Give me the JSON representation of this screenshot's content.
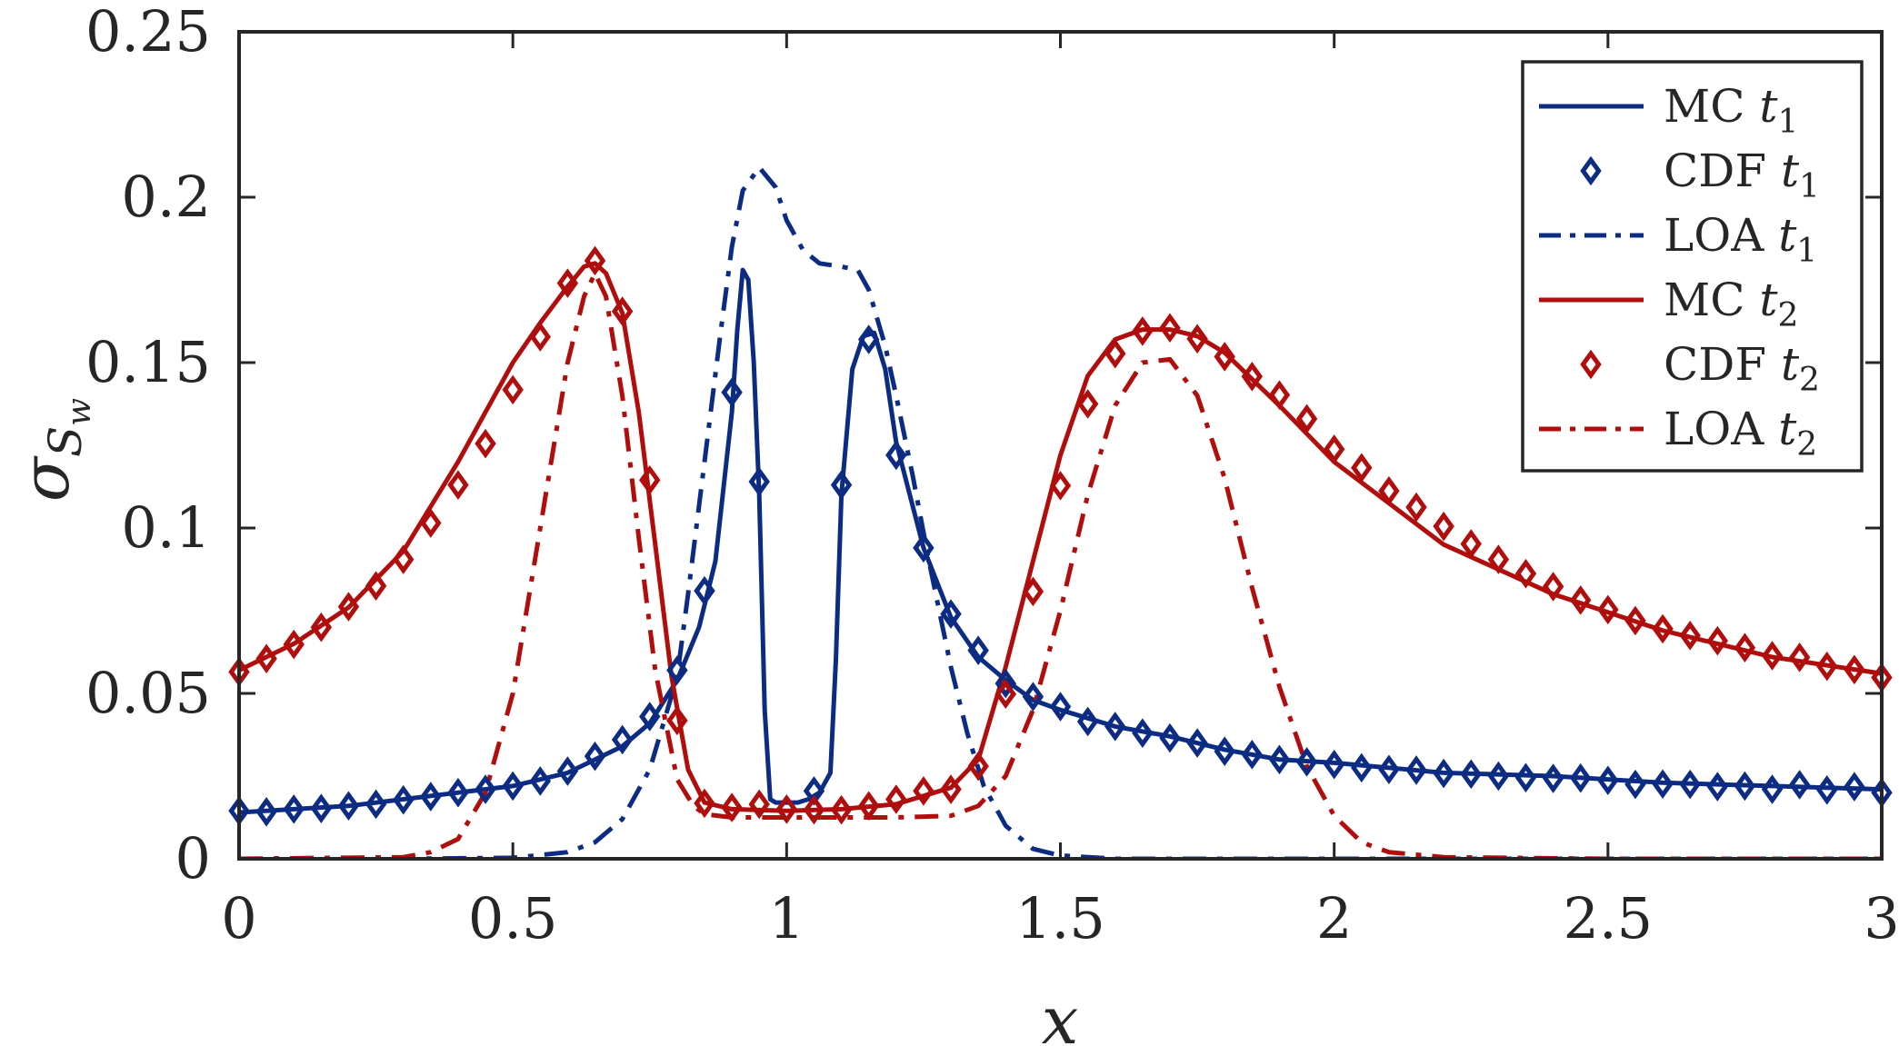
{
  "chart_data": {
    "type": "line",
    "title": "",
    "xlabel": "x",
    "ylabel": "σ_{S_w}",
    "ylabel_main": "σ",
    "ylabel_sub": "S",
    "ylabel_subsub": "w",
    "xlim": [
      0,
      3
    ],
    "ylim": [
      0,
      0.25
    ],
    "xticks": [
      0,
      0.5,
      1,
      1.5,
      2,
      2.5,
      3
    ],
    "xtick_labels": [
      "0",
      "0.5",
      "1",
      "1.5",
      "2",
      "2.5",
      "3"
    ],
    "yticks": [
      0,
      0.05,
      0.1,
      0.15,
      0.2,
      0.25
    ],
    "ytick_labels": [
      "0",
      "0.05",
      "0.1",
      "0.15",
      "0.2",
      "0.25"
    ],
    "grid": false,
    "legend_position": "top-right",
    "colors": {
      "t1": "#0c2c84",
      "t2": "#b00d0d"
    },
    "series": [
      {
        "name": "MC t1",
        "label_main": "MC",
        "label_t": "t",
        "label_sub": "1",
        "color": "#0c2c84",
        "style": "solid",
        "marker": "none",
        "x": [
          0,
          0.1,
          0.2,
          0.3,
          0.4,
          0.5,
          0.6,
          0.7,
          0.75,
          0.8,
          0.84,
          0.87,
          0.9,
          0.91,
          0.92,
          0.93,
          0.94,
          0.95,
          0.96,
          0.97,
          0.98,
          1.0,
          1.02,
          1.04,
          1.06,
          1.08,
          1.09,
          1.1,
          1.12,
          1.14,
          1.16,
          1.18,
          1.2,
          1.25,
          1.3,
          1.35,
          1.4,
          1.45,
          1.5,
          1.6,
          1.7,
          1.8,
          1.9,
          2.0,
          2.2,
          2.4,
          2.6,
          2.8,
          3.0
        ],
        "y": [
          0.014,
          0.015,
          0.016,
          0.018,
          0.02,
          0.022,
          0.026,
          0.034,
          0.041,
          0.054,
          0.07,
          0.09,
          0.135,
          0.16,
          0.178,
          0.175,
          0.15,
          0.11,
          0.045,
          0.018,
          0.017,
          0.017,
          0.017,
          0.018,
          0.02,
          0.026,
          0.06,
          0.11,
          0.148,
          0.158,
          0.159,
          0.148,
          0.126,
          0.094,
          0.073,
          0.061,
          0.054,
          0.048,
          0.045,
          0.04,
          0.037,
          0.033,
          0.03,
          0.029,
          0.026,
          0.025,
          0.023,
          0.022,
          0.021
        ]
      },
      {
        "name": "CDF t1",
        "label_main": "CDF",
        "label_t": "t",
        "label_sub": "1",
        "color": "#0c2c84",
        "style": "none",
        "marker": "diamond",
        "x": [
          0,
          0.05,
          0.1,
          0.15,
          0.2,
          0.25,
          0.3,
          0.35,
          0.4,
          0.45,
          0.5,
          0.55,
          0.6,
          0.65,
          0.7,
          0.75,
          0.8,
          0.85,
          0.9,
          0.95,
          1.0,
          1.05,
          1.1,
          1.15,
          1.2,
          1.25,
          1.3,
          1.35,
          1.4,
          1.45,
          1.5,
          1.55,
          1.6,
          1.65,
          1.7,
          1.75,
          1.8,
          1.85,
          1.9,
          1.95,
          2.0,
          2.05,
          2.1,
          2.15,
          2.2,
          2.25,
          2.3,
          2.35,
          2.4,
          2.45,
          2.5,
          2.55,
          2.6,
          2.65,
          2.7,
          2.75,
          2.8,
          2.85,
          2.9,
          2.95,
          3.0
        ],
        "y": [
          0.0145,
          0.0142,
          0.015,
          0.0152,
          0.016,
          0.0165,
          0.0178,
          0.0188,
          0.02,
          0.021,
          0.022,
          0.0235,
          0.0265,
          0.031,
          0.036,
          0.043,
          0.057,
          0.081,
          0.141,
          0.114,
          0.015,
          0.0205,
          0.113,
          0.157,
          0.122,
          0.094,
          0.074,
          0.063,
          0.053,
          0.049,
          0.046,
          0.0415,
          0.04,
          0.038,
          0.0365,
          0.035,
          0.0325,
          0.0315,
          0.03,
          0.0293,
          0.0285,
          0.0275,
          0.027,
          0.0268,
          0.0258,
          0.0256,
          0.025,
          0.0245,
          0.0243,
          0.0244,
          0.0237,
          0.0225,
          0.0226,
          0.0225,
          0.0218,
          0.022,
          0.021,
          0.0224,
          0.0208,
          0.0218,
          0.02
        ]
      },
      {
        "name": "LOA t1",
        "label_main": "LOA",
        "label_t": "t",
        "label_sub": "1",
        "color": "#0c2c84",
        "style": "dashdot",
        "marker": "none",
        "x": [
          0,
          0.3,
          0.5,
          0.6,
          0.65,
          0.7,
          0.75,
          0.8,
          0.82,
          0.85,
          0.88,
          0.9,
          0.92,
          0.95,
          0.98,
          1.0,
          1.03,
          1.06,
          1.1,
          1.13,
          1.15,
          1.18,
          1.2,
          1.23,
          1.26,
          1.3,
          1.33,
          1.36,
          1.4,
          1.45,
          1.5,
          1.6,
          2.0,
          3.0
        ],
        "y": [
          0,
          0,
          0.0003,
          0.002,
          0.005,
          0.012,
          0.027,
          0.055,
          0.08,
          0.12,
          0.16,
          0.185,
          0.202,
          0.209,
          0.203,
          0.193,
          0.184,
          0.18,
          0.179,
          0.178,
          0.172,
          0.155,
          0.14,
          0.116,
          0.09,
          0.058,
          0.038,
          0.022,
          0.01,
          0.003,
          0.001,
          0,
          0,
          0
        ]
      },
      {
        "name": "MC t2",
        "label_main": "MC",
        "label_t": "t",
        "label_sub": "2",
        "color": "#b00d0d",
        "style": "solid",
        "marker": "none",
        "x": [
          0,
          0.1,
          0.2,
          0.3,
          0.4,
          0.45,
          0.5,
          0.55,
          0.6,
          0.63,
          0.65,
          0.67,
          0.7,
          0.73,
          0.76,
          0.79,
          0.82,
          0.85,
          0.9,
          1.0,
          1.1,
          1.2,
          1.3,
          1.35,
          1.4,
          1.45,
          1.5,
          1.55,
          1.6,
          1.65,
          1.7,
          1.75,
          1.8,
          1.9,
          2.0,
          2.2,
          2.4,
          2.6,
          2.8,
          3.0
        ],
        "y": [
          0.057,
          0.065,
          0.076,
          0.093,
          0.12,
          0.135,
          0.15,
          0.162,
          0.173,
          0.179,
          0.18,
          0.177,
          0.165,
          0.135,
          0.095,
          0.055,
          0.027,
          0.017,
          0.015,
          0.0145,
          0.015,
          0.0165,
          0.0215,
          0.03,
          0.058,
          0.09,
          0.122,
          0.146,
          0.157,
          0.16,
          0.16,
          0.158,
          0.153,
          0.137,
          0.12,
          0.095,
          0.08,
          0.069,
          0.061,
          0.056
        ]
      },
      {
        "name": "CDF t2",
        "label_main": "CDF",
        "label_t": "t",
        "label_sub": "2",
        "color": "#b00d0d",
        "style": "none",
        "marker": "diamond",
        "x": [
          0,
          0.05,
          0.1,
          0.15,
          0.2,
          0.25,
          0.3,
          0.35,
          0.4,
          0.45,
          0.5,
          0.55,
          0.6,
          0.65,
          0.7,
          0.75,
          0.8,
          0.85,
          0.9,
          0.95,
          1.0,
          1.05,
          1.1,
          1.15,
          1.2,
          1.25,
          1.3,
          1.35,
          1.4,
          1.45,
          1.5,
          1.55,
          1.6,
          1.65,
          1.7,
          1.75,
          1.8,
          1.85,
          1.9,
          1.95,
          2.0,
          2.05,
          2.1,
          2.15,
          2.2,
          2.25,
          2.3,
          2.35,
          2.4,
          2.45,
          2.5,
          2.55,
          2.6,
          2.65,
          2.7,
          2.75,
          2.8,
          2.85,
          2.9,
          2.95,
          3.0
        ],
        "y": [
          0.0565,
          0.0605,
          0.0648,
          0.07,
          0.0762,
          0.0825,
          0.0905,
          0.1015,
          0.113,
          0.1255,
          0.1418,
          0.1578,
          0.174,
          0.1808,
          0.1655,
          0.1145,
          0.0418,
          0.0168,
          0.0155,
          0.0165,
          0.015,
          0.0148,
          0.0148,
          0.016,
          0.018,
          0.0205,
          0.021,
          0.028,
          0.0498,
          0.0808,
          0.1128,
          0.1375,
          0.1527,
          0.1595,
          0.1605,
          0.1572,
          0.1518,
          0.1458,
          0.1402,
          0.133,
          0.1238,
          0.1182,
          0.1112,
          0.1063,
          0.1005,
          0.0952,
          0.0905,
          0.0862,
          0.0823,
          0.0782,
          0.0753,
          0.072,
          0.0695,
          0.0675,
          0.0659,
          0.0638,
          0.0614,
          0.0609,
          0.0582,
          0.0572,
          0.0548
        ]
      },
      {
        "name": "LOA t2",
        "label_main": "LOA",
        "label_t": "t",
        "label_sub": "2",
        "color": "#b00d0d",
        "style": "dashdot",
        "marker": "none",
        "x": [
          0,
          0.3,
          0.35,
          0.4,
          0.45,
          0.5,
          0.55,
          0.6,
          0.63,
          0.65,
          0.67,
          0.7,
          0.73,
          0.76,
          0.8,
          0.83,
          0.85,
          0.9,
          1.0,
          1.1,
          1.2,
          1.3,
          1.35,
          1.4,
          1.45,
          1.5,
          1.55,
          1.6,
          1.65,
          1.7,
          1.75,
          1.8,
          1.85,
          1.9,
          1.95,
          2.0,
          2.05,
          2.1,
          2.2,
          2.5,
          3.0
        ],
        "y": [
          0,
          0.0005,
          0.002,
          0.006,
          0.02,
          0.05,
          0.1,
          0.15,
          0.17,
          0.177,
          0.17,
          0.14,
          0.097,
          0.057,
          0.024,
          0.016,
          0.0135,
          0.0125,
          0.0125,
          0.0125,
          0.0125,
          0.013,
          0.016,
          0.025,
          0.045,
          0.075,
          0.11,
          0.137,
          0.15,
          0.151,
          0.14,
          0.115,
          0.082,
          0.052,
          0.028,
          0.013,
          0.005,
          0.002,
          0.0005,
          0,
          0
        ]
      }
    ]
  }
}
